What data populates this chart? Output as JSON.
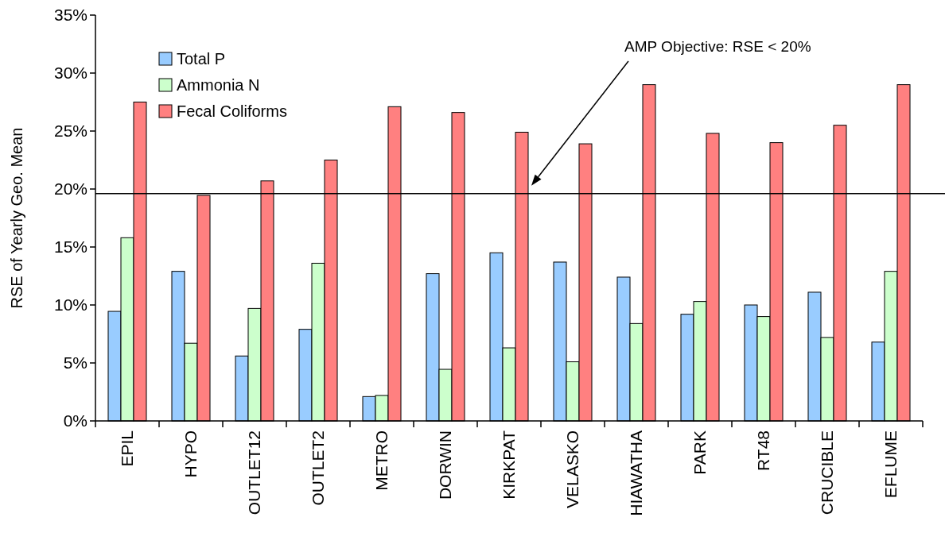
{
  "chart_data": {
    "type": "bar",
    "ylabel": "RSE of Yearly Geo. Mean",
    "categories": [
      "EPIL",
      "HYPO",
      "OUTLET12",
      "OUTLET2",
      "METRO",
      "DORWIN",
      "KIRKPAT",
      "VELASKO",
      "HIAWATHA",
      "PARK",
      "RT48",
      "CRUCIBLE",
      "EFLUME"
    ],
    "series": [
      {
        "name": "Total P",
        "color": "#99ccff",
        "values": [
          9.45,
          12.9,
          5.6,
          7.9,
          2.1,
          12.7,
          14.5,
          13.7,
          12.4,
          9.2,
          10.0,
          11.1,
          6.8
        ]
      },
      {
        "name": "Ammonia N",
        "color": "#ccffcc",
        "values": [
          15.8,
          6.7,
          9.7,
          13.6,
          2.2,
          4.45,
          6.3,
          5.1,
          8.4,
          10.3,
          9.0,
          7.2,
          12.9
        ]
      },
      {
        "name": "Fecal Coliforms",
        "color": "#ff8080",
        "values": [
          27.5,
          19.45,
          20.7,
          22.5,
          27.1,
          26.6,
          24.9,
          23.9,
          29.0,
          24.8,
          24.0,
          25.5,
          29.0
        ]
      }
    ],
    "ylim": [
      0,
      35
    ],
    "yticks": [
      {
        "value": 0,
        "label": "0%"
      },
      {
        "value": 5,
        "label": "5%"
      },
      {
        "value": 10,
        "label": "10%"
      },
      {
        "value": 15,
        "label": "15%"
      },
      {
        "value": 20,
        "label": "20%"
      },
      {
        "value": 25,
        "label": "25%"
      },
      {
        "value": 30,
        "label": "30%"
      },
      {
        "value": 35,
        "label": "35%"
      }
    ],
    "ref_lines": [
      {
        "axis": "y",
        "value": 19.6,
        "color": "#000000"
      }
    ],
    "annotations": [
      "AMP Objective: RSE < 20%"
    ],
    "legend": "top left",
    "grid": false
  }
}
